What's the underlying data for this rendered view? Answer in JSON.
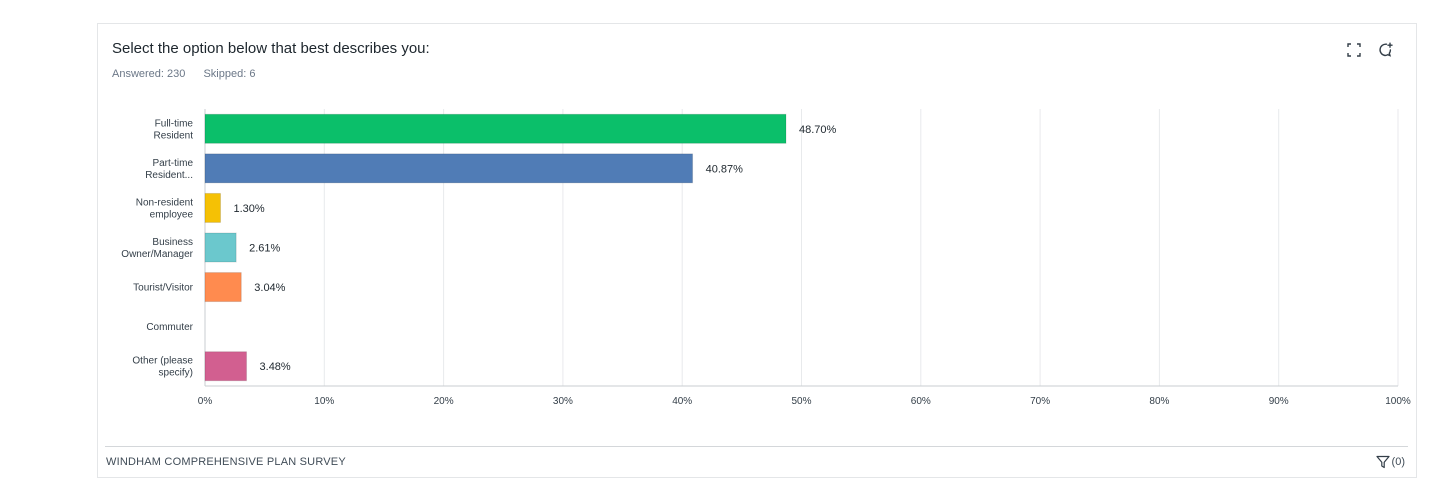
{
  "question": {
    "title": "Select the option below that best describes you:",
    "answered": "Answered: 230",
    "skipped": "Skipped: 6"
  },
  "icons": {
    "expand": "expand-icon",
    "comment": "comment-icon",
    "filter": "filter-icon"
  },
  "footer": {
    "survey_name": "WINDHAM COMPREHENSIVE PLAN SURVEY",
    "filter_count": "(0)"
  },
  "chart_data": {
    "type": "bar",
    "orientation": "horizontal",
    "categories": [
      [
        "Full-time",
        "Resident"
      ],
      [
        "Part-time",
        "Resident..."
      ],
      [
        "Non-resident",
        "employee"
      ],
      [
        "Business",
        "Owner/Manager"
      ],
      [
        "Tourist/Visitor"
      ],
      [
        "Commuter"
      ],
      [
        "Other (please",
        "specify)"
      ]
    ],
    "values": [
      48.7,
      40.87,
      1.3,
      2.61,
      3.04,
      0,
      3.48
    ],
    "value_labels": [
      "48.70%",
      "40.87%",
      "1.30%",
      "2.61%",
      "3.04%",
      "",
      "3.48%"
    ],
    "colors": [
      "#0bbf6a",
      "#507cb6",
      "#f5c105",
      "#6bc8cd",
      "#ff8b4f",
      "#7d6bb0",
      "#d25f90"
    ],
    "xlim": [
      0,
      100
    ],
    "xticks": [
      "0%",
      "10%",
      "20%",
      "30%",
      "40%",
      "50%",
      "60%",
      "70%",
      "80%",
      "90%",
      "100%"
    ],
    "grid": true
  }
}
